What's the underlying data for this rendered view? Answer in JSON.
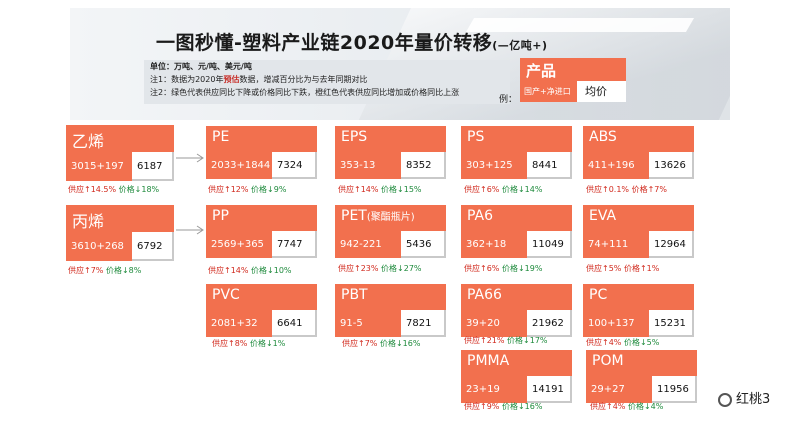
{
  "header": {
    "title": "一图秒懂-塑料产业链2020年量价转移",
    "title_unit": "(—亿吨+)",
    "notes": {
      "unit_line": "单位：万吨、元/吨、美元/吨",
      "note1_prefix": "注1：数据为2020年",
      "note1_highlight": "预估",
      "note1_suffix": "数据，增减百分比为与去年同期对比",
      "note2": "注2：绿色代表供应同比下降或价格同比下跌，橙红色代表供应同比增加或价格同比上涨"
    },
    "example": {
      "label": "例：",
      "name": "产品",
      "supply": "国产+净进口",
      "price": "均价"
    }
  },
  "cards": [
    {
      "name": "乙烯",
      "supply": "3015+197",
      "price": "6187",
      "supply_change": "供应↑14.5%",
      "price_change": "价格↓18%"
    },
    {
      "name": "丙烯",
      "supply": "3610+268",
      "price": "6792",
      "supply_change": "供应↑7%",
      "price_change": "价格↓8%"
    },
    {
      "name": "PE",
      "supply": "2033+1844",
      "price": "7324",
      "supply_change": "供应↑12%",
      "price_change": "价格↓9%"
    },
    {
      "name": "PP",
      "supply": "2569+365",
      "price": "7747",
      "supply_change": "供应↑14%",
      "price_change": "价格↓10%"
    },
    {
      "name": "PVC",
      "supply": "2081+32",
      "price": "6641",
      "supply_change": "供应↑8%",
      "price_change": "价格↓1%"
    },
    {
      "name": "EPS",
      "supply": "353-13",
      "price": "8352",
      "supply_change": "供应↑14%",
      "price_change": "价格↓15%"
    },
    {
      "name": "PET",
      "name_sub": "(聚酯瓶片)",
      "supply": "942-221",
      "price": "5436",
      "supply_change": "供应↑23%",
      "price_change": "价格↓27%"
    },
    {
      "name": "PBT",
      "supply": "91-5",
      "price": "7821",
      "supply_change": "供应↑7%",
      "price_change": "价格↓16%"
    },
    {
      "name": "PS",
      "supply": "303+125",
      "price": "8441",
      "supply_change": "供应↑6%",
      "price_change": "价格↓14%"
    },
    {
      "name": "PA6",
      "supply": "362+18",
      "price": "11049",
      "supply_change": "供应↑6%",
      "price_change": "价格↓19%"
    },
    {
      "name": "PA66",
      "supply": "39+20",
      "price": "21962",
      "supply_change": "供应↑21%",
      "price_change": "价格↓17%"
    },
    {
      "name": "PMMA",
      "supply": "23+19",
      "price": "14191",
      "supply_change": "供应↑9%",
      "price_change": "价格↓16%"
    },
    {
      "name": "ABS",
      "supply": "411+196",
      "price": "13626",
      "supply_change": "供应↑0.1%",
      "price_change": "价格↑7%"
    },
    {
      "name": "EVA",
      "supply": "74+111",
      "price": "12964",
      "supply_change": "供应↑5%",
      "price_change": "价格↑1%"
    },
    {
      "name": "PC",
      "supply": "100+137",
      "price": "15231",
      "supply_change": "供应↑4%",
      "price_change": "价格↓5%"
    },
    {
      "name": "POM",
      "supply": "29+27",
      "price": "11956",
      "supply_change": "供应↑4%",
      "price_change": "价格↓4%"
    }
  ],
  "watermark": "红桃3",
  "colors": {
    "card": "#f2704e",
    "up": "#d12a1e",
    "down": "#1e8a3c"
  }
}
